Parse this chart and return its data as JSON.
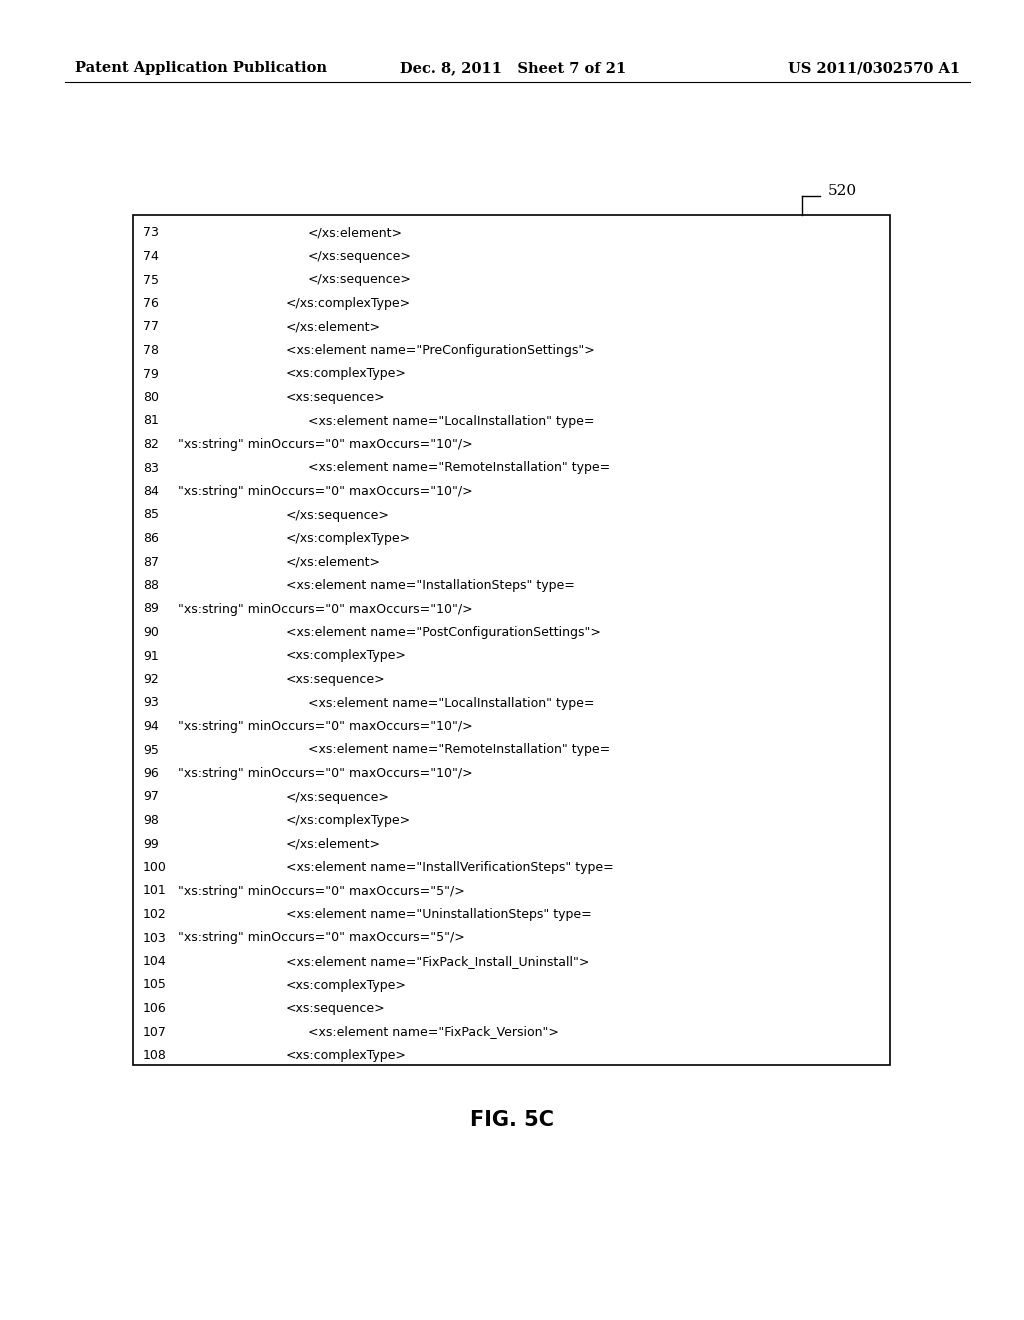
{
  "header_left": "Patent Application Publication",
  "header_mid": "Dec. 8, 2011   Sheet 7 of 21",
  "header_right": "US 2011/0302570 A1",
  "figure_label": "FIG. 5C",
  "box_label": "520",
  "bg_color": "#ffffff",
  "lines": [
    {
      "num": "73",
      "cont": false,
      "indent": 6,
      "text": "</xs:element>"
    },
    {
      "num": "74",
      "cont": false,
      "indent": 6,
      "text": "</xs:sequence>"
    },
    {
      "num": "75",
      "cont": false,
      "indent": 6,
      "text": "</xs:sequence>"
    },
    {
      "num": "76",
      "cont": false,
      "indent": 5,
      "text": "</xs:complexType>"
    },
    {
      "num": "77",
      "cont": false,
      "indent": 5,
      "text": "</xs:element>"
    },
    {
      "num": "78",
      "cont": false,
      "indent": 5,
      "text": "<xs:element name=\"PreConfigurationSettings\">"
    },
    {
      "num": "79",
      "cont": false,
      "indent": 5,
      "text": "<xs:complexType>"
    },
    {
      "num": "80",
      "cont": false,
      "indent": 5,
      "text": "<xs:sequence>"
    },
    {
      "num": "81",
      "cont": false,
      "indent": 6,
      "text": "<xs:element name=\"LocalInstallation\" type="
    },
    {
      "num": "82",
      "cont": true,
      "indent": 1,
      "text": "\"xs:string\" minOccurs=\"0\" maxOccurs=\"10\"/>"
    },
    {
      "num": "83",
      "cont": false,
      "indent": 6,
      "text": "<xs:element name=\"RemoteInstallation\" type="
    },
    {
      "num": "84",
      "cont": true,
      "indent": 1,
      "text": "\"xs:string\" minOccurs=\"0\" maxOccurs=\"10\"/>"
    },
    {
      "num": "85",
      "cont": false,
      "indent": 5,
      "text": "</xs:sequence>"
    },
    {
      "num": "86",
      "cont": false,
      "indent": 5,
      "text": "</xs:complexType>"
    },
    {
      "num": "87",
      "cont": false,
      "indent": 5,
      "text": "</xs:element>"
    },
    {
      "num": "88",
      "cont": false,
      "indent": 5,
      "text": "<xs:element name=\"InstallationSteps\" type="
    },
    {
      "num": "89",
      "cont": true,
      "indent": 1,
      "text": "\"xs:string\" minOccurs=\"0\" maxOccurs=\"10\"/>"
    },
    {
      "num": "90",
      "cont": false,
      "indent": 5,
      "text": "<xs:element name=\"PostConfigurationSettings\">"
    },
    {
      "num": "91",
      "cont": false,
      "indent": 5,
      "text": "<xs:complexType>"
    },
    {
      "num": "92",
      "cont": false,
      "indent": 5,
      "text": "<xs:sequence>"
    },
    {
      "num": "93",
      "cont": false,
      "indent": 6,
      "text": "<xs:element name=\"LocalInstallation\" type="
    },
    {
      "num": "94",
      "cont": true,
      "indent": 1,
      "text": "\"xs:string\" minOccurs=\"0\" maxOccurs=\"10\"/>"
    },
    {
      "num": "95",
      "cont": false,
      "indent": 6,
      "text": "<xs:element name=\"RemoteInstallation\" type="
    },
    {
      "num": "96",
      "cont": true,
      "indent": 1,
      "text": "\"xs:string\" minOccurs=\"0\" maxOccurs=\"10\"/>"
    },
    {
      "num": "97",
      "cont": false,
      "indent": 5,
      "text": "</xs:sequence>"
    },
    {
      "num": "98",
      "cont": false,
      "indent": 5,
      "text": "</xs:complexType>"
    },
    {
      "num": "99",
      "cont": false,
      "indent": 5,
      "text": "</xs:element>"
    },
    {
      "num": "100",
      "cont": false,
      "indent": 5,
      "text": "<xs:element name=\"InstallVerificationSteps\" type="
    },
    {
      "num": "101",
      "cont": true,
      "indent": 1,
      "text": "\"xs:string\" minOccurs=\"0\" maxOccurs=\"5\"/>"
    },
    {
      "num": "102",
      "cont": false,
      "indent": 5,
      "text": "<xs:element name=\"UninstallationSteps\" type="
    },
    {
      "num": "103",
      "cont": true,
      "indent": 1,
      "text": "\"xs:string\" minOccurs=\"0\" maxOccurs=\"5\"/>"
    },
    {
      "num": "104",
      "cont": false,
      "indent": 5,
      "text": "<xs:element name=\"FixPack_Install_Uninstall\">"
    },
    {
      "num": "105",
      "cont": false,
      "indent": 5,
      "text": "<xs:complexType>"
    },
    {
      "num": "106",
      "cont": false,
      "indent": 5,
      "text": "<xs:sequence>"
    },
    {
      "num": "107",
      "cont": false,
      "indent": 6,
      "text": "<xs:element name=\"FixPack_Version\">"
    },
    {
      "num": "108",
      "cont": false,
      "indent": 5,
      "text": "<xs:complexType>"
    }
  ]
}
